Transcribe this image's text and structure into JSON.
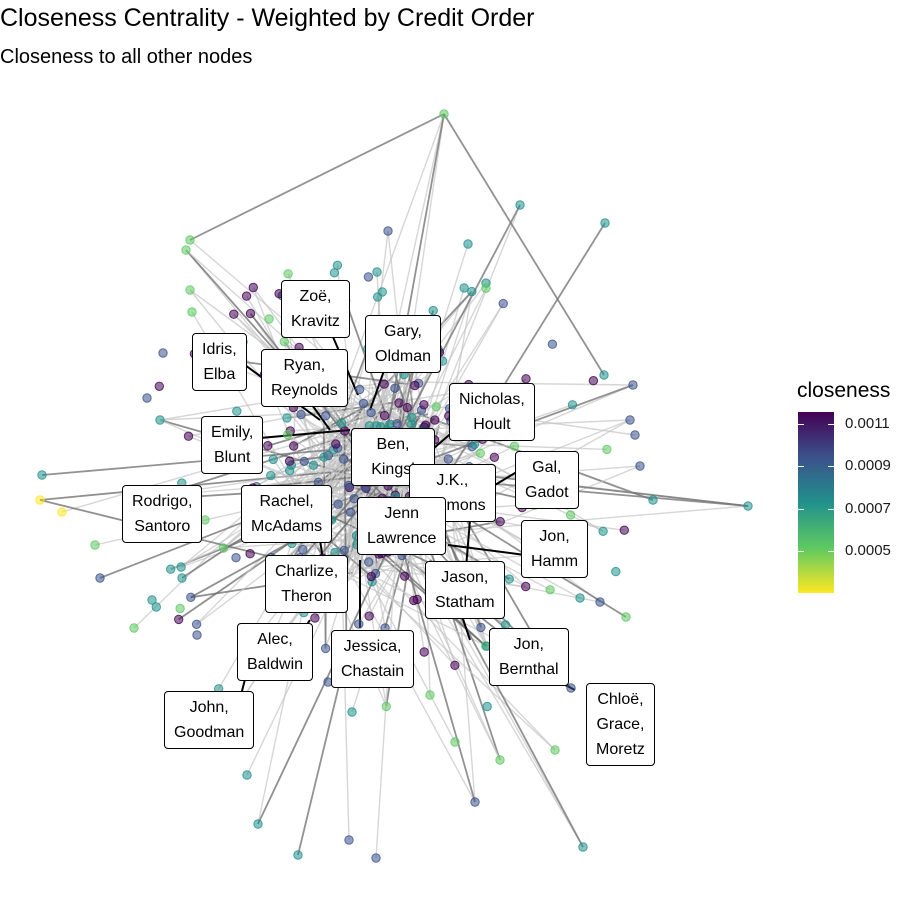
{
  "title": "Closeness Centrality - Weighted by Credit Order",
  "subtitle": "Closeness to all other nodes",
  "legend": {
    "title": "closeness",
    "ticks": [
      "0.0011",
      "0.0009",
      "0.0007",
      "0.0005"
    ],
    "palette": [
      "#440154",
      "#3b528b",
      "#21918c",
      "#5ec962",
      "#fde725"
    ]
  },
  "labels": [
    {
      "line1": "Zoë,",
      "line2": "Kravitz"
    },
    {
      "line1": "Gary,",
      "line2": "Oldman"
    },
    {
      "line1": "Idris,",
      "line2": "Elba"
    },
    {
      "line1": "Ryan,",
      "line2": "Reynolds"
    },
    {
      "line1": "Nicholas,",
      "line2": "Hoult"
    },
    {
      "line1": "Emily,",
      "line2": "Blunt"
    },
    {
      "line1": "Ben,",
      "line2": "Kingsl"
    },
    {
      "line1": "Gal,",
      "line2": "Gadot"
    },
    {
      "line1": "J.K.,",
      "line2": "Simmons"
    },
    {
      "line1": "Rodrigo,",
      "line2": "Santoro"
    },
    {
      "line1": "Rachel,",
      "line2": "McAdams"
    },
    {
      "line1": "Jenn",
      "line2": "Lawrence"
    },
    {
      "line1": "Jon,",
      "line2": "Hamm"
    },
    {
      "line1": "Charlize,",
      "line2": "Theron"
    },
    {
      "line1": "Jason,",
      "line2": "Statham"
    },
    {
      "line1": "Alec,",
      "line2": "Baldwin"
    },
    {
      "line1": "Jessica,",
      "line2": "Chastain"
    },
    {
      "line1": "Jon,",
      "line2": "Bernthal"
    },
    {
      "line1": "John,",
      "line2": "Goodman"
    },
    {
      "line1": "Chloë,",
      "line2": "Grace,",
      "line3": "Moretz"
    }
  ]
}
